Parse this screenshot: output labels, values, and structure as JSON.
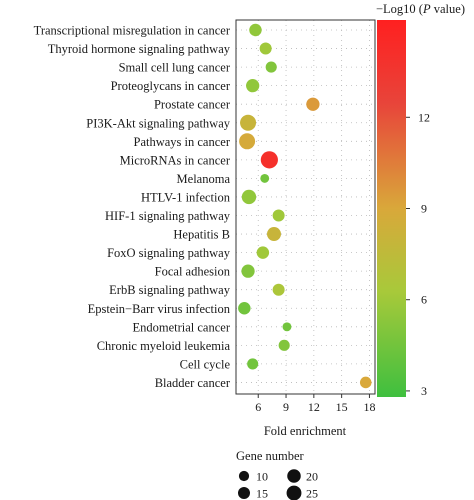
{
  "chart_data": {
    "type": "scatter",
    "xlabel": "Fold enrichment",
    "x_ticks": [
      6,
      9,
      12,
      15,
      18
    ],
    "xlim": [
      3.6,
      18.6
    ],
    "categories": [
      "Transcriptional misregulation in cancer",
      "Thyroid hormone signaling pathway",
      "Small cell lung cancer",
      "Proteoglycans in cancer",
      "Prostate cancer",
      "PI3K-Akt signaling pathway",
      "Pathways in cancer",
      "MicroRNAs in cancer",
      "Melanoma",
      "HTLV-1 infection",
      "HIF-1 signaling pathway",
      "Hepatitis B",
      "FoxO signaling pathway",
      "Focal adhesion",
      "ErbB signaling pathway",
      "Epstein−Barr virus infection",
      "Endometrial cancer",
      "Chronic myeloid leukemia",
      "Cell cycle",
      "Bladder cancer"
    ],
    "points": [
      {
        "category": "Transcriptional misregulation in cancer",
        "fold_enrichment": 5.7,
        "gene_number": 12,
        "neg_log10_p": 5.5
      },
      {
        "category": "Thyroid hormone signaling pathway",
        "fold_enrichment": 6.8,
        "gene_number": 11,
        "neg_log10_p": 6.0
      },
      {
        "category": "Small cell lung cancer",
        "fold_enrichment": 7.4,
        "gene_number": 9,
        "neg_log10_p": 5.0
      },
      {
        "category": "Proteoglycans in cancer",
        "fold_enrichment": 5.4,
        "gene_number": 14,
        "neg_log10_p": 5.5
      },
      {
        "category": "Prostate cancer",
        "fold_enrichment": 11.9,
        "gene_number": 14,
        "neg_log10_p": 9.5
      },
      {
        "category": "PI3K-Akt signaling pathway",
        "fold_enrichment": 4.9,
        "gene_number": 22,
        "neg_log10_p": 8.0
      },
      {
        "category": "Pathways in cancer",
        "fold_enrichment": 4.8,
        "gene_number": 22,
        "neg_log10_p": 8.8
      },
      {
        "category": "MicroRNAs in cancer",
        "fold_enrichment": 7.2,
        "gene_number": 26,
        "neg_log10_p": 14.0
      },
      {
        "category": "Melanoma",
        "fold_enrichment": 6.7,
        "gene_number": 5,
        "neg_log10_p": 4.5
      },
      {
        "category": "HTLV-1 infection",
        "fold_enrichment": 5.0,
        "gene_number": 17,
        "neg_log10_p": 5.5
      },
      {
        "category": "HIF-1 signaling pathway",
        "fold_enrichment": 8.2,
        "gene_number": 11,
        "neg_log10_p": 6.0
      },
      {
        "category": "Hepatitis B",
        "fold_enrichment": 7.7,
        "gene_number": 16,
        "neg_log10_p": 8.0
      },
      {
        "category": "FoxO signaling pathway",
        "fold_enrichment": 6.5,
        "gene_number": 12,
        "neg_log10_p": 6.0
      },
      {
        "category": "Focal adhesion",
        "fold_enrichment": 4.9,
        "gene_number": 14,
        "neg_log10_p": 5.0
      },
      {
        "category": "ErbB signaling pathway",
        "fold_enrichment": 8.2,
        "gene_number": 11,
        "neg_log10_p": 6.5
      },
      {
        "category": "Epstein−Barr virus infection",
        "fold_enrichment": 4.5,
        "gene_number": 12,
        "neg_log10_p": 4.5
      },
      {
        "category": "Endometrial cancer",
        "fold_enrichment": 9.1,
        "gene_number": 5,
        "neg_log10_p": 4.5
      },
      {
        "category": "Chronic myeloid leukemia",
        "fold_enrichment": 8.8,
        "gene_number": 9,
        "neg_log10_p": 5.0
      },
      {
        "category": "Cell cycle",
        "fold_enrichment": 5.4,
        "gene_number": 9,
        "neg_log10_p": 4.5
      },
      {
        "category": "Bladder cancer",
        "fold_enrichment": 17.6,
        "gene_number": 10,
        "neg_log10_p": 9.0
      }
    ],
    "colorbar": {
      "title_prefix": "−Log10 (",
      "title_italic": "P",
      "title_suffix": " value)",
      "ticks": [
        3,
        6,
        9,
        12
      ],
      "range": [
        2.8,
        15.2
      ],
      "colors": [
        "#3fbf3f",
        "#a8c93a",
        "#d9a83a",
        "#e8443a",
        "#ff2020"
      ]
    },
    "size_legend": {
      "title": "Gene number",
      "entries": [
        10,
        15,
        20,
        25
      ]
    },
    "grid": "dotted"
  }
}
